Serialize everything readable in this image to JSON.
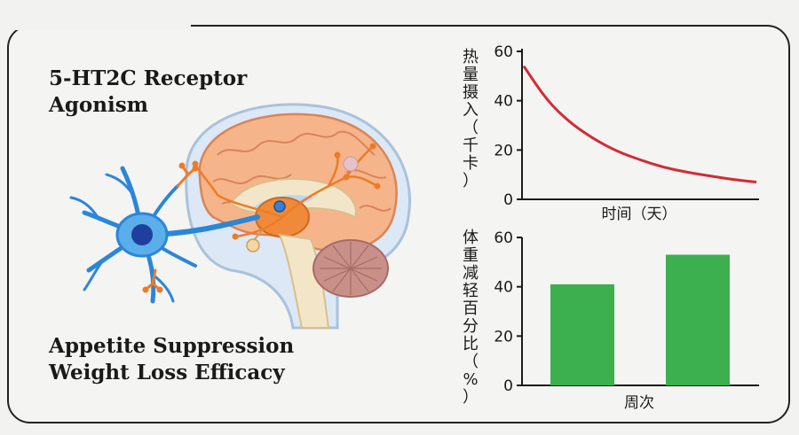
{
  "heading_top": [
    "5-HT2C Receptor",
    "Agonism"
  ],
  "heading_bottom": [
    "Appetite Suppression",
    "Weight Loss Efficacy"
  ],
  "charts": [
    {
      "type": "line",
      "xlabel": "时间（天）",
      "ylabel": "热量摄入（千卡）",
      "ylim": [
        0,
        60
      ],
      "yticks": [
        0,
        20,
        40,
        60
      ],
      "series": [
        {
          "color": "#d42a35",
          "x": [
            0,
            5,
            10,
            15,
            20,
            25,
            30,
            35,
            40,
            45,
            50
          ],
          "y": [
            54,
            40,
            31,
            24.5,
            19.5,
            16,
            13,
            11,
            9.5,
            8,
            7
          ]
        }
      ],
      "grid": false
    },
    {
      "type": "bar",
      "xlabel": "周次",
      "ylabel": "体重减轻百分比（%）",
      "ylim": [
        0,
        60
      ],
      "yticks": [
        0,
        20,
        40,
        60
      ],
      "values": [
        41,
        53
      ],
      "bar_color": "#3cb04f",
      "grid": false
    }
  ]
}
